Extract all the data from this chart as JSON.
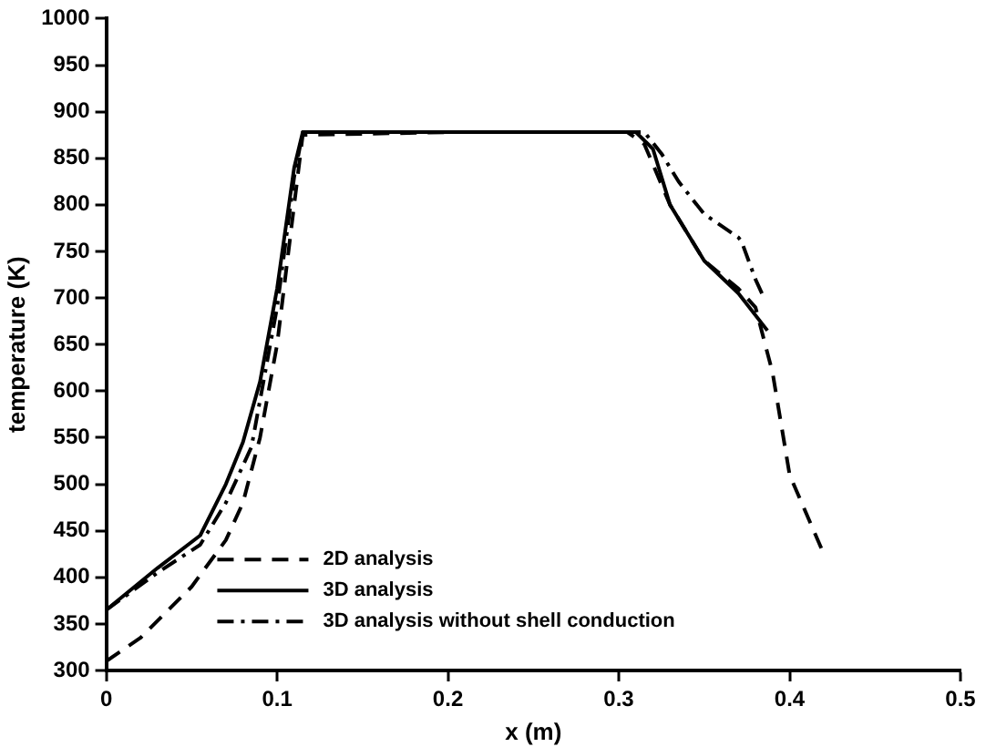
{
  "chart_data": {
    "type": "line",
    "xlabel": "x (m)",
    "ylabel": "temperature (K)",
    "xlim": [
      0,
      0.5
    ],
    "xticks": [
      0,
      0.1,
      0.2,
      0.3,
      0.4,
      0.5
    ],
    "ylim": [
      300,
      1000
    ],
    "yticks": [
      300,
      350,
      400,
      450,
      500,
      550,
      600,
      650,
      700,
      750,
      800,
      850,
      900,
      950,
      1000
    ],
    "grid": false,
    "legend": "bottom",
    "marker": "none",
    "series": [
      {
        "name": "2D analysis",
        "color": "#000000",
        "line_style": "dashed",
        "x": [
          0,
          0.02,
          0.05,
          0.07,
          0.08,
          0.09,
          0.1,
          0.11,
          0.115,
          0.2,
          0.305,
          0.315,
          0.33,
          0.35,
          0.37,
          0.38,
          0.39,
          0.4,
          0.42
        ],
        "values": [
          310,
          335,
          390,
          440,
          480,
          550,
          650,
          800,
          875,
          878,
          878,
          865,
          800,
          740,
          710,
          690,
          620,
          510,
          425
        ]
      },
      {
        "name": "3D analysis",
        "color": "#000000",
        "line_style": "solid",
        "x": [
          0,
          0.03,
          0.055,
          0.07,
          0.08,
          0.09,
          0.1,
          0.11,
          0.115,
          0.2,
          0.31,
          0.32,
          0.33,
          0.35,
          0.37,
          0.387
        ],
        "values": [
          365,
          410,
          445,
          500,
          545,
          610,
          710,
          840,
          878,
          878,
          878,
          860,
          800,
          740,
          705,
          665
        ]
      },
      {
        "name": "3D analysis without shell conduction",
        "color": "#000000",
        "line_style": "dashdot",
        "x": [
          0,
          0.03,
          0.055,
          0.07,
          0.085,
          0.1,
          0.11,
          0.115,
          0.2,
          0.315,
          0.325,
          0.335,
          0.35,
          0.37,
          0.372,
          0.38,
          0.385
        ],
        "values": [
          365,
          405,
          435,
          480,
          540,
          690,
          830,
          878,
          878,
          878,
          855,
          825,
          790,
          765,
          760,
          720,
          700
        ]
      }
    ]
  }
}
